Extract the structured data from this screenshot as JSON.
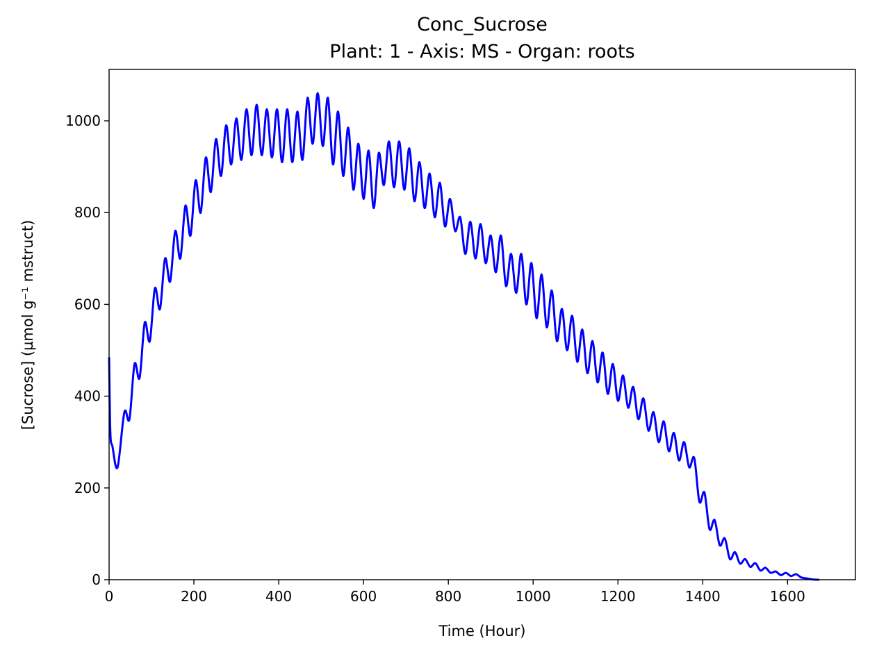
{
  "chart_data": {
    "type": "line",
    "title": "Conc_Sucrose",
    "subtitle": "Plant: 1 - Axis: MS - Organ: roots",
    "xlabel": "Time (Hour)",
    "ylabel": "[Sucrose] (µmol g⁻¹ mstruct)",
    "xlim": [
      0,
      1760
    ],
    "ylim": [
      0,
      1112
    ],
    "xticks": [
      0,
      200,
      400,
      600,
      800,
      1000,
      1200,
      1400,
      1600
    ],
    "yticks": [
      0,
      200,
      400,
      600,
      800,
      1000
    ],
    "grid": false,
    "legend": "none",
    "series": [
      {
        "color": "#0000ff",
        "cycle_hours": 24,
        "x": [
          0,
          3,
          8,
          20,
          36,
          48,
          60,
          72,
          84,
          96,
          108,
          120,
          132,
          144,
          156,
          168,
          180,
          192,
          204,
          216,
          228,
          240,
          252,
          264,
          276,
          288,
          300,
          312,
          324,
          336,
          348,
          360,
          372,
          384,
          396,
          408,
          420,
          432,
          444,
          456,
          468,
          480,
          492,
          504,
          516,
          528,
          540,
          552,
          564,
          576,
          588,
          600,
          612,
          624,
          636,
          648,
          660,
          672,
          684,
          696,
          708,
          720,
          732,
          744,
          756,
          768,
          780,
          792,
          804,
          816,
          828,
          840,
          852,
          864,
          876,
          888,
          900,
          912,
          924,
          936,
          948,
          960,
          972,
          984,
          996,
          1008,
          1020,
          1032,
          1044,
          1056,
          1068,
          1080,
          1092,
          1104,
          1116,
          1128,
          1140,
          1152,
          1164,
          1176,
          1188,
          1200,
          1212,
          1224,
          1236,
          1248,
          1260,
          1272,
          1284,
          1296,
          1308,
          1320,
          1332,
          1344,
          1356,
          1368,
          1380,
          1392,
          1404,
          1416,
          1428,
          1440,
          1452,
          1464,
          1476,
          1488,
          1500,
          1512,
          1524,
          1536,
          1548,
          1560,
          1572,
          1584,
          1596,
          1608,
          1620,
          1632,
          1644,
          1656,
          1668,
          1675
        ],
        "y": [
          485,
          320,
          290,
          245,
          365,
          350,
          470,
          440,
          560,
          520,
          635,
          590,
          700,
          650,
          760,
          700,
          815,
          750,
          870,
          800,
          920,
          845,
          960,
          880,
          990,
          905,
          1005,
          915,
          1025,
          925,
          1035,
          925,
          1025,
          920,
          1025,
          910,
          1025,
          910,
          1020,
          915,
          1050,
          950,
          1060,
          945,
          1050,
          905,
          1020,
          880,
          985,
          850,
          950,
          830,
          935,
          810,
          930,
          860,
          955,
          855,
          955,
          850,
          940,
          825,
          910,
          810,
          885,
          790,
          865,
          770,
          830,
          760,
          790,
          710,
          780,
          700,
          775,
          690,
          750,
          670,
          750,
          640,
          710,
          625,
          710,
          600,
          690,
          570,
          665,
          550,
          630,
          520,
          590,
          500,
          575,
          475,
          545,
          450,
          520,
          430,
          495,
          405,
          470,
          390,
          445,
          375,
          420,
          350,
          395,
          325,
          365,
          300,
          345,
          280,
          320,
          260,
          300,
          245,
          265,
          170,
          190,
          110,
          130,
          75,
          90,
          45,
          60,
          35,
          45,
          28,
          36,
          20,
          26,
          15,
          18,
          10,
          15,
          8,
          12,
          5,
          3,
          1,
          0,
          0
        ]
      }
    ]
  }
}
